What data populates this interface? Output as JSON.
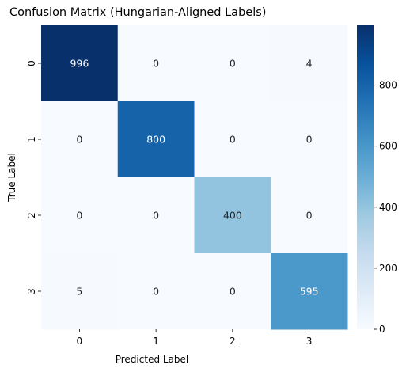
{
  "chart_data": {
    "type": "heatmap",
    "title": "Confusion Matrix (Hungarian-Aligned Labels)",
    "xlabel": "Predicted Label",
    "ylabel": "True Label",
    "x_categories": [
      "0",
      "1",
      "2",
      "3"
    ],
    "y_categories": [
      "0",
      "1",
      "2",
      "3"
    ],
    "values": [
      [
        996,
        0,
        0,
        4
      ],
      [
        0,
        800,
        0,
        0
      ],
      [
        0,
        0,
        400,
        0
      ],
      [
        5,
        0,
        0,
        595
      ]
    ],
    "colorscale": "Blues",
    "vmin": 0,
    "vmax": 996,
    "colorbar_ticks": [
      0,
      200,
      400,
      600,
      800
    ],
    "colors": {
      "low": "#f7fbff",
      "high": "#08306b"
    }
  }
}
